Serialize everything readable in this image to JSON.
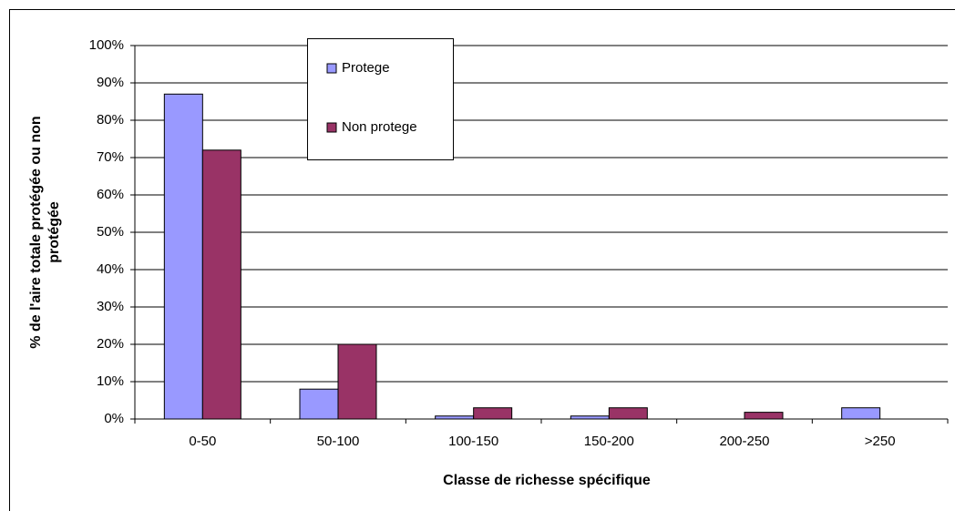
{
  "chart_data": {
    "type": "bar",
    "xlabel": "Classe de richesse spécifique",
    "ylabel": [
      "% de l'aire totale protégée ou non",
      "protégée"
    ],
    "categories": [
      "0-50",
      "50-100",
      "100-150",
      "150-200",
      "200-250",
      ">250"
    ],
    "series": [
      {
        "name": "Protege",
        "color": "#9999ff",
        "values": [
          87,
          8,
          0.8,
          0.8,
          0,
          3
        ]
      },
      {
        "name": "Non protege",
        "color": "#993366",
        "values": [
          72,
          20,
          3,
          3,
          1.8,
          0
        ]
      }
    ],
    "ylim": [
      0,
      100
    ],
    "yticks": [
      {
        "value": 0,
        "label": "0%"
      },
      {
        "value": 10,
        "label": "10%"
      },
      {
        "value": 20,
        "label": "20%"
      },
      {
        "value": 30,
        "label": "30%"
      },
      {
        "value": 40,
        "label": "40%"
      },
      {
        "value": 50,
        "label": "50%"
      },
      {
        "value": 60,
        "label": "60%"
      },
      {
        "value": 70,
        "label": "70%"
      },
      {
        "value": 80,
        "label": "80%"
      },
      {
        "value": 90,
        "label": "90%"
      },
      {
        "value": 100,
        "label": "100%"
      }
    ],
    "grid": true
  }
}
